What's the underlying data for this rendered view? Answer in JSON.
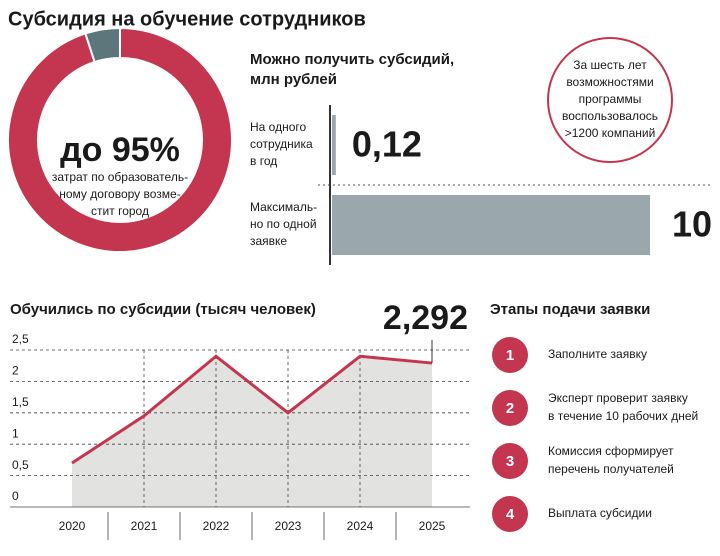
{
  "title": "Субсидия на обучение сотрудников",
  "chart_data": [
    {
      "type": "pie",
      "values": [
        95,
        5
      ],
      "value_labels": [
        "до 95%",
        null
      ],
      "colors": [
        "#c4364f",
        "#5d767c"
      ],
      "center_text": [
        "затрат по образователь-",
        "ному договору возме-",
        "стит город"
      ]
    },
    {
      "type": "bar",
      "title": [
        "Можно получить субсидий,",
        "млн рублей"
      ],
      "categories": [
        [
          "На одного",
          "сотрудника",
          "в год"
        ],
        [
          "Максималь-",
          "но по одной",
          "заявке"
        ]
      ],
      "values": [
        0.12,
        10
      ],
      "value_labels": [
        "0,12",
        "10"
      ],
      "xlim": [
        0,
        10
      ],
      "color": "#9aa8ad"
    },
    {
      "type": "line",
      "title": "Обучились по субсидии (тысяч человек)",
      "categories": [
        "2020",
        "2021",
        "2022",
        "2023",
        "2024",
        "2025"
      ],
      "values": [
        0.7,
        1.45,
        2.4,
        1.5,
        2.4,
        2.292
      ],
      "value_labels": [
        null,
        null,
        null,
        null,
        null,
        "2,292"
      ],
      "ylim": [
        0,
        2.5
      ],
      "yticks": [
        0,
        {
          "value": 0.5,
          "label": "0,5"
        },
        1,
        {
          "value": 1.5,
          "label": "1,5"
        },
        2,
        {
          "value": 2.5,
          "label": "2,5"
        }
      ],
      "grid": true,
      "color": "#c4364f",
      "area_color": "#e2e2e0"
    }
  ],
  "callout": [
    "За шесть лет",
    "возможностями",
    "программы",
    "воспользовалось",
    ">1200 компаний"
  ],
  "steps": {
    "title": "Этапы подачи заявки",
    "items": [
      {
        "number": "1",
        "text": [
          "Заполните заявку"
        ]
      },
      {
        "number": "2",
        "text": [
          "Эксперт проверит заявку",
          "в течение 10 рабочих дней"
        ]
      },
      {
        "number": "3",
        "text": [
          "Комиссия сформирует",
          "перечень получателей"
        ]
      },
      {
        "number": "4",
        "text": [
          "Выплата субсидии"
        ]
      }
    ]
  }
}
